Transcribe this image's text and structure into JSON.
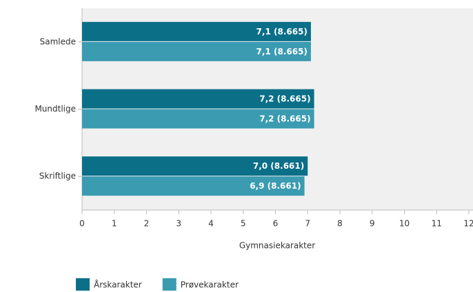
{
  "chart_data": {
    "type": "hbar",
    "x_label": "Gymnasiekarakter",
    "categories": [
      "Samlede",
      "Mundtlige",
      "Skriftlige"
    ],
    "series": [
      {
        "name": "Årskarakter",
        "color": "#0b6f88",
        "values": [
          7.1,
          7.2,
          7.0
        ],
        "value_labels": [
          "7,1 (8.665)",
          "7,2 (8.665)",
          "7,0 (8.661)"
        ]
      },
      {
        "name": "Prøvekarakter",
        "color": "#3a9bb1",
        "values": [
          7.1,
          7.2,
          6.9
        ],
        "value_labels": [
          "7,1 (8.665)",
          "7,2 (8.665)",
          "6,9 (8.661)"
        ]
      }
    ],
    "xlim": [
      0,
      12
    ],
    "xticks": [
      0,
      1,
      2,
      3,
      4,
      5,
      6,
      7,
      8,
      9,
      10,
      11,
      12
    ],
    "legend": "bottom-left"
  }
}
